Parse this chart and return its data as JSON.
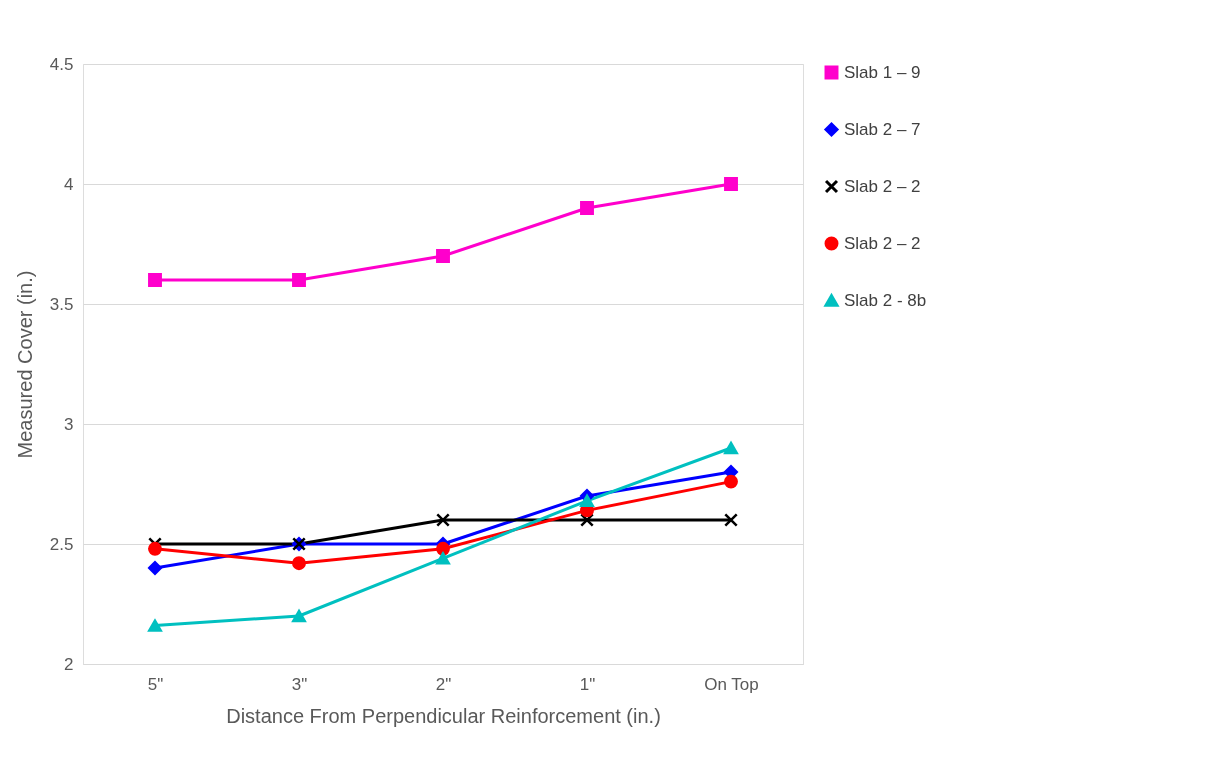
{
  "chart_data": {
    "type": "line",
    "xlabel": "Distance From Perpendicular Reinforcement (in.)",
    "ylabel": "Measured Cover (in.)",
    "categories": [
      "5\"",
      "3\"",
      "2\"",
      "1\"",
      "On Top"
    ],
    "ylim": [
      2,
      4.5
    ],
    "yticks": [
      2,
      2.5,
      3,
      3.5,
      4,
      4.5
    ],
    "grid": "y",
    "legend": "right",
    "line_style": "solid",
    "series": [
      {
        "name": "Slab 1 – 9",
        "color": "#ff00cc",
        "marker": "square",
        "values": [
          3.6,
          3.6,
          3.7,
          3.9,
          4.0
        ]
      },
      {
        "name": "Slab 2 – 7",
        "color": "#0000ff",
        "marker": "diamond",
        "values": [
          2.4,
          2.5,
          2.5,
          2.7,
          2.8
        ]
      },
      {
        "name": "Slab 2 – 2",
        "color": "#000000",
        "marker": "cross",
        "values": [
          2.5,
          2.5,
          2.6,
          2.6,
          2.6
        ]
      },
      {
        "name": "Slab 2 – 2",
        "color": "#ff0000",
        "marker": "circle",
        "values": [
          2.48,
          2.42,
          2.48,
          2.64,
          2.76
        ]
      },
      {
        "name": "Slab 2 - 8b",
        "color": "#00c0c0",
        "marker": "triangle",
        "values": [
          2.16,
          2.2,
          2.44,
          2.68,
          2.9
        ]
      }
    ]
  }
}
